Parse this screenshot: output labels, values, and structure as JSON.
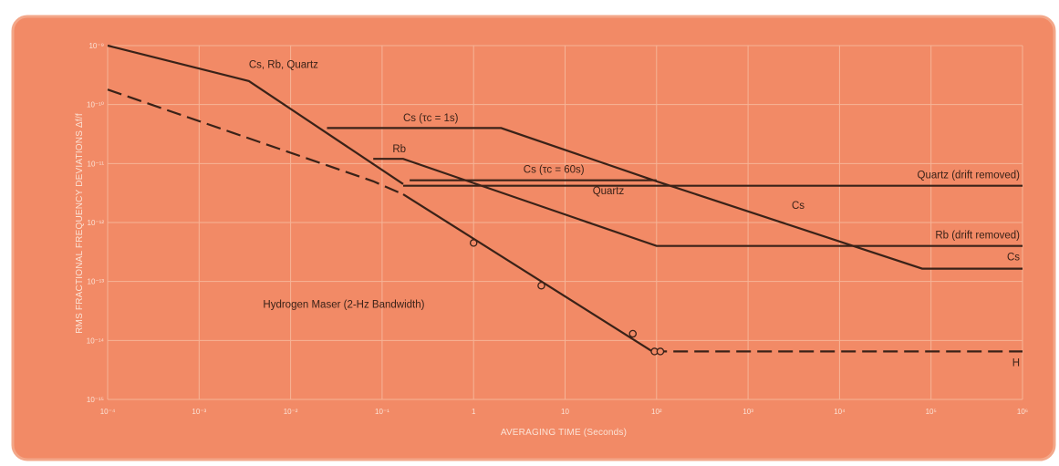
{
  "chart_data": {
    "type": "line",
    "title": "",
    "xlabel": "AVERAGING TIME (Seconds)",
    "ylabel": "RMS FRACTIONAL FREQUENCY DEVIATIONS Δf/f",
    "x_scale": "log",
    "y_scale": "log",
    "xlim": [
      0.0001,
      1000000
    ],
    "ylim": [
      1e-15,
      1e-09
    ],
    "grid": true,
    "legend": "none",
    "colors": {
      "background": "#f28a66",
      "border": "#f3a789",
      "grid": "#f6b497",
      "line": "#3a2218",
      "tick_text": "#fbe3d6"
    },
    "x_tick_labels": [
      "10⁻⁴",
      "10⁻³",
      "10⁻²",
      "10⁻¹",
      "1",
      "10",
      "10²",
      "10³",
      "10⁴",
      "10⁵",
      "10⁶"
    ],
    "y_tick_labels": [
      "10⁻⁹",
      "10⁻¹⁰",
      "10⁻¹¹",
      "10⁻¹²",
      "10⁻¹³",
      "10⁻¹⁴",
      "10⁻¹⁵"
    ],
    "series": [
      {
        "label": "Cs, Rb, Quartz",
        "style": "solid",
        "x": [
          0.0001,
          0.0035,
          0.17
        ],
        "y": [
          1e-09,
          2.5e-10,
          4.5e-12
        ]
      },
      {
        "label": "Cs (τc = 1s)",
        "style": "solid",
        "x": [
          0.025,
          2,
          100,
          80000,
          1000000
        ],
        "y": [
          4e-11,
          4e-11,
          5e-12,
          1.65e-13,
          1.65e-13
        ]
      },
      {
        "label": "Rb",
        "style": "solid",
        "x": [
          0.08,
          0.17,
          100,
          1000000
        ],
        "y": [
          1.2e-11,
          1.2e-11,
          4e-13,
          4e-13
        ]
      },
      {
        "label": "Cs (τc = 60s)",
        "style": "solid",
        "x": [
          0.2,
          100
        ],
        "y": [
          5.2e-12,
          5.2e-12
        ]
      },
      {
        "label": "Quartz",
        "style": "solid",
        "x": [
          0.17,
          1000000
        ],
        "y": [
          4.2e-12,
          4.2e-12
        ]
      },
      {
        "label": "Hydrogen Maser (2-Hz Bandwidth)",
        "style": "dashed",
        "x": [
          0.0001,
          0.08,
          0.17
        ],
        "y": [
          1.8e-10,
          5e-12,
          3e-12
        ]
      },
      {
        "label": "Hydrogen Maser (2-Hz Bandwidth)",
        "style": "solid",
        "x": [
          0.17,
          90
        ],
        "y": [
          3e-12,
          6.5e-15
        ]
      },
      {
        "label": "H",
        "style": "dashed",
        "x": [
          90,
          1000000
        ],
        "y": [
          6.5e-15,
          6.5e-15
        ]
      }
    ],
    "markers": {
      "x": [
        1,
        5.5,
        55,
        95,
        110
      ],
      "y": [
        4.5e-13,
        8.5e-14,
        1.3e-14,
        6.5e-15,
        6.5e-15
      ]
    },
    "annotations": [
      {
        "id": "cs_rb_quartz",
        "text": "Cs, Rb, Quartz",
        "x": 0.0035,
        "y": 4.2e-10
      },
      {
        "id": "cs_1s",
        "text": "Cs (τc = 1s)",
        "x": 0.17,
        "y": 5.2e-11
      },
      {
        "id": "rb",
        "text": "Rb",
        "x": 0.13,
        "y": 1.55e-11
      },
      {
        "id": "cs_60s",
        "text": "Cs (τc = 60s)",
        "x": 3.5,
        "y": 7e-12
      },
      {
        "id": "quartz",
        "text": "Quartz",
        "x": 20,
        "y": 3e-12
      },
      {
        "id": "quartz_drift",
        "text": "Quartz (drift removed)",
        "x": 1000000,
        "y": 5.6e-12
      },
      {
        "id": "cs_mid",
        "text": "Cs",
        "x": 3000,
        "y": 1.7e-12
      },
      {
        "id": "rb_drift",
        "text": "Rb (drift removed)",
        "x": 1000000,
        "y": 5.4e-13
      },
      {
        "id": "cs_right",
        "text": "Cs",
        "x": 1000000,
        "y": 2.3e-13
      },
      {
        "id": "hmaser",
        "text": "Hydrogen Maser (2-Hz Bandwidth)",
        "x": 0.005,
        "y": 3.6e-14
      },
      {
        "id": "h",
        "text": "H",
        "x": 1000000,
        "y": 3.7e-15
      }
    ]
  }
}
